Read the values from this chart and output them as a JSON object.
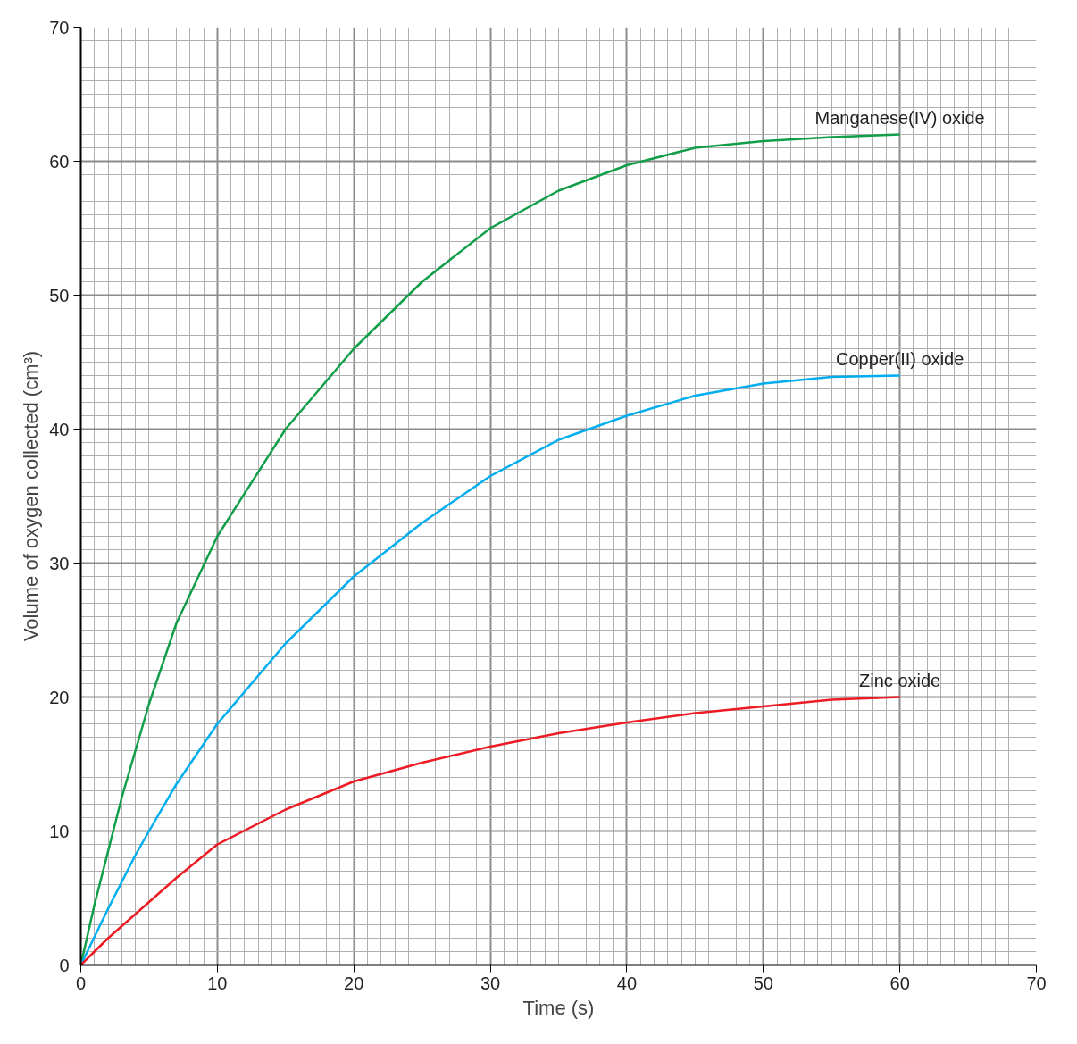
{
  "chart_data": {
    "type": "line",
    "xlabel": "Time (s)",
    "ylabel": "Volume of oxygen collected (cm³)",
    "xlim": [
      0,
      70
    ],
    "ylim": [
      0,
      70
    ],
    "xticks": [
      0,
      10,
      20,
      30,
      40,
      50,
      60,
      70
    ],
    "yticks": [
      0,
      10,
      20,
      30,
      40,
      50,
      60,
      70
    ],
    "grid": true,
    "marker": "none",
    "line_style": "solid",
    "x": [
      0,
      1,
      2,
      3,
      4,
      5,
      7,
      10,
      15,
      20,
      25,
      30,
      35,
      40,
      45,
      50,
      55,
      60
    ],
    "series": [
      {
        "name": "Manganese(IV) oxide",
        "color": "#119e48",
        "values": [
          0,
          4.5,
          8.5,
          12.5,
          16,
          19.5,
          25.5,
          32,
          40,
          46,
          51,
          55,
          57.8,
          59.7,
          61,
          61.5,
          61.8,
          62
        ]
      },
      {
        "name": "Copper(II) oxide",
        "color": "#00aeef",
        "values": [
          0,
          2.1,
          4.2,
          6.2,
          8.2,
          10,
          13.5,
          18,
          24,
          29,
          33,
          36.5,
          39.2,
          41,
          42.5,
          43.4,
          43.9,
          44
        ]
      },
      {
        "name": "Zinc oxide",
        "color": "#ed1c24",
        "values": [
          0,
          1,
          2,
          2.9,
          3.8,
          4.7,
          6.5,
          9,
          11.6,
          13.7,
          15.1,
          16.3,
          17.3,
          18.1,
          18.8,
          19.3,
          19.8,
          20
        ]
      }
    ]
  }
}
